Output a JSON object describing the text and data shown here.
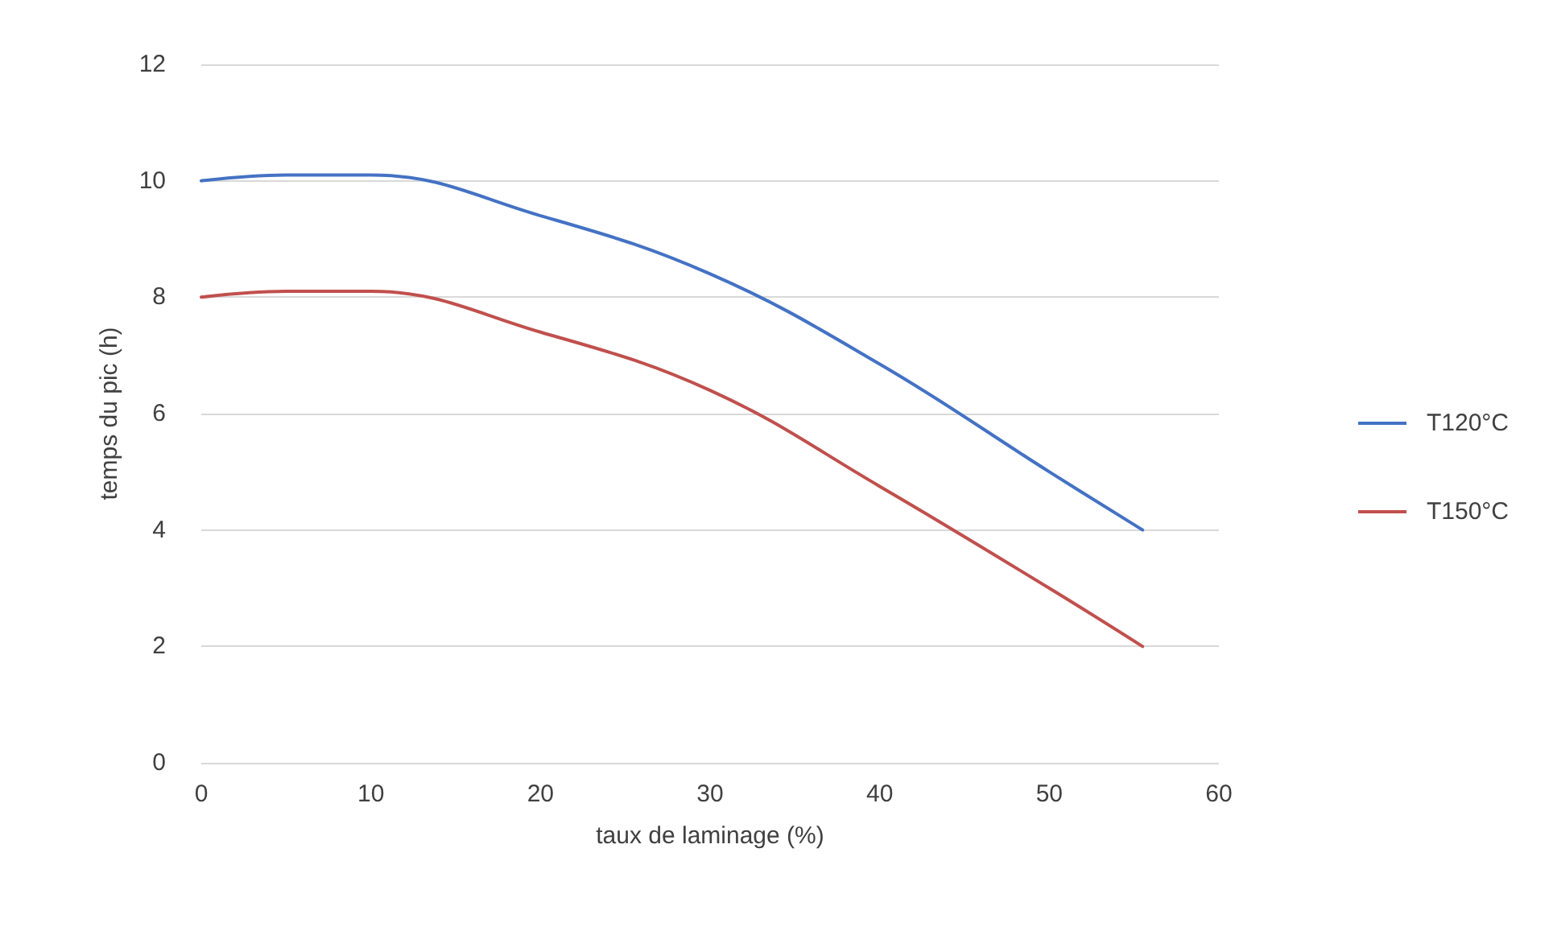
{
  "chart_data": {
    "type": "line",
    "xlabel": "taux de laminage (%)",
    "ylabel": "temps du pic (h)",
    "x": [
      0,
      5,
      10,
      20,
      30,
      40,
      50,
      55.5
    ],
    "series": [
      {
        "name": "T120°C",
        "color": "#4472c4",
        "values": [
          10,
          10.1,
          10.1,
          9.4,
          8.4,
          6.85,
          5.0,
          4
        ]
      },
      {
        "name": "T150°C",
        "color": "#c0504d",
        "values": [
          8,
          8.1,
          8.1,
          7.4,
          6.4,
          4.75,
          3.0,
          2
        ]
      }
    ],
    "xlim": [
      0,
      60
    ],
    "xticks": [
      0,
      10,
      20,
      30,
      40,
      50,
      60
    ],
    "ylim": [
      0,
      12
    ],
    "yticks": [
      0,
      2,
      4,
      6,
      8,
      10,
      12
    ],
    "grid": "y",
    "legend": "right",
    "marker": "none",
    "line_style": "solid"
  }
}
